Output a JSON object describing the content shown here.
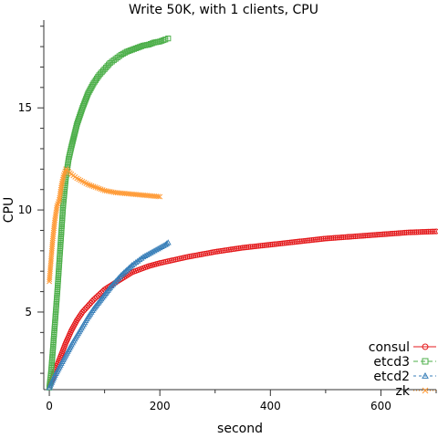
{
  "chart_data": {
    "type": "scatter",
    "title": "Write 50K, with 1 clients, CPU",
    "xlabel": "second",
    "ylabel": "CPU",
    "xlim": [
      -10,
      700
    ],
    "ylim": [
      1.2,
      19.3
    ],
    "xticks": [
      0,
      200,
      400,
      600
    ],
    "yticks": [
      5,
      10,
      15
    ],
    "legend_position": "bottom-right",
    "grid": false,
    "series": [
      {
        "name": "consul",
        "color": "#e41a1c",
        "marker": "circle",
        "x": [
          0,
          5,
          10,
          20,
          30,
          40,
          50,
          60,
          80,
          100,
          120,
          150,
          180,
          200,
          250,
          300,
          350,
          400,
          450,
          500,
          550,
          600,
          650,
          700
        ],
        "y": [
          1.3,
          1.7,
          2.1,
          2.8,
          3.5,
          4.1,
          4.6,
          5.0,
          5.6,
          6.1,
          6.45,
          6.95,
          7.25,
          7.4,
          7.7,
          7.95,
          8.15,
          8.3,
          8.45,
          8.6,
          8.7,
          8.8,
          8.9,
          8.95
        ]
      },
      {
        "name": "etcd3",
        "color": "#4daf4a",
        "marker": "square",
        "x": [
          0,
          3,
          6,
          10,
          15,
          20,
          25,
          30,
          35,
          40,
          50,
          60,
          70,
          80,
          90,
          100,
          110,
          120,
          130,
          140,
          150,
          160,
          170,
          180,
          190,
          200,
          210,
          215
        ],
        "y": [
          1.3,
          2.0,
          3.0,
          4.4,
          6.2,
          8.2,
          10.2,
          11.6,
          12.5,
          13.1,
          14.2,
          15.0,
          15.7,
          16.2,
          16.6,
          16.9,
          17.2,
          17.4,
          17.6,
          17.75,
          17.85,
          17.95,
          18.05,
          18.1,
          18.2,
          18.25,
          18.35,
          18.4
        ]
      },
      {
        "name": "etcd2",
        "color": "#377eb8",
        "marker": "triangle",
        "x": [
          0,
          10,
          20,
          30,
          40,
          50,
          60,
          70,
          80,
          90,
          100,
          110,
          120,
          130,
          140,
          150,
          160,
          170,
          180,
          190,
          200,
          210,
          215
        ],
        "y": [
          1.3,
          1.9,
          2.4,
          2.9,
          3.4,
          3.85,
          4.3,
          4.75,
          5.15,
          5.5,
          5.85,
          6.2,
          6.5,
          6.8,
          7.05,
          7.3,
          7.5,
          7.7,
          7.85,
          8.0,
          8.15,
          8.3,
          8.4
        ]
      },
      {
        "name": "zk",
        "color": "#ff9933",
        "marker": "x",
        "x": [
          0,
          3,
          6,
          10,
          14,
          18,
          22,
          26,
          30,
          40,
          50,
          60,
          70,
          80,
          100,
          120,
          140,
          160,
          180,
          200
        ],
        "y": [
          6.5,
          7.5,
          8.5,
          9.5,
          10.2,
          10.5,
          11.2,
          11.7,
          12.0,
          11.75,
          11.55,
          11.4,
          11.25,
          11.15,
          10.95,
          10.85,
          10.8,
          10.75,
          10.7,
          10.65
        ]
      }
    ]
  }
}
